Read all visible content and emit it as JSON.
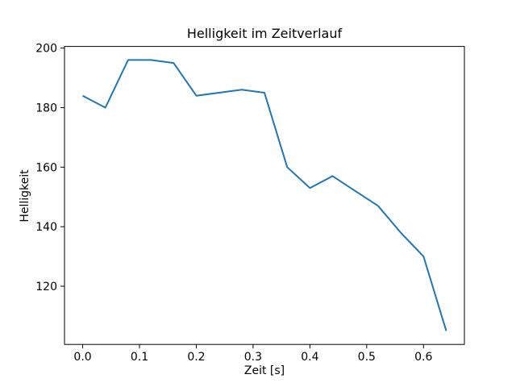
{
  "chart_data": {
    "type": "line",
    "title": "Helligkeit im Zeitverlauf",
    "xlabel": "Zeit [s]",
    "ylabel": "Helligkeit",
    "x": [
      0.0,
      0.04,
      0.08,
      0.12,
      0.16,
      0.2,
      0.24,
      0.28,
      0.32,
      0.36,
      0.4,
      0.44,
      0.48,
      0.52,
      0.56,
      0.6,
      0.64
    ],
    "y": [
      184,
      180,
      196,
      196,
      195,
      184,
      185,
      186,
      185,
      160,
      153,
      157,
      152,
      147,
      138,
      130,
      105
    ],
    "xlim": [
      -0.032,
      0.672
    ],
    "ylim": [
      100.45,
      200.55
    ],
    "xticks": [
      0.0,
      0.1,
      0.2,
      0.3,
      0.4,
      0.5,
      0.6
    ],
    "yticks": [
      120,
      140,
      160,
      180,
      200
    ],
    "line_color": "#1f77b4",
    "axis_color": "#000000",
    "background": "#ffffff",
    "grid": false,
    "legend_position": "none"
  }
}
